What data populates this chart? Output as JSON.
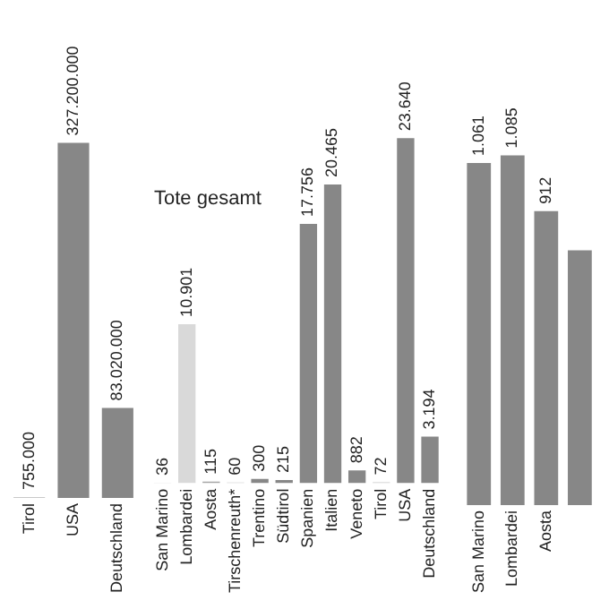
{
  "chart_data": [
    {
      "type": "bar",
      "categories": [
        "Tirol",
        "USA",
        "Deutschland"
      ],
      "values": [
        755000,
        327200000,
        83020000
      ],
      "colors": [
        "#c8c8c8",
        "#878787",
        "#878787"
      ],
      "value_labels": [
        "755.000",
        "327.200.000",
        "83.020.000"
      ],
      "grid": false,
      "legend": false,
      "tick_labels": "x"
    },
    {
      "type": "bar",
      "title": "Tote gesamt",
      "categories": [
        "San Marino",
        "Lombardei",
        "Aosta",
        "Tirschenreuth*",
        "Trentino",
        "Südtirol",
        "Spanien",
        "Italien",
        "Veneto",
        "Tirol",
        "USA",
        "Deutschland"
      ],
      "values": [
        36,
        10901,
        115,
        60,
        300,
        215,
        17756,
        20465,
        882,
        72,
        23640,
        3194
      ],
      "colors": [
        "#d9d9d9",
        "#d9d9d9",
        "#a6a6a6",
        "#c8c8c8",
        "#878787",
        "#878787",
        "#878787",
        "#878787",
        "#878787",
        "#c8c8c8",
        "#878787",
        "#878787"
      ],
      "value_labels": [
        "36",
        "10.901",
        "115",
        "60",
        "300",
        "215",
        "17.756",
        "20.465",
        "882",
        "72",
        "23.640",
        "3.194"
      ],
      "grid": false,
      "legend": false,
      "tick_labels": "x"
    },
    {
      "type": "bar",
      "categories": [
        "San Marino",
        "Lombardei",
        "Aosta",
        null
      ],
      "values": [
        1061,
        1085,
        912,
        790
      ],
      "colors": [
        "#878787",
        "#878787",
        "#878787",
        "#878787"
      ],
      "value_labels": [
        "1.061",
        "1.085",
        "912",
        null
      ],
      "grid": false,
      "legend": false,
      "tick_labels": "x"
    }
  ]
}
